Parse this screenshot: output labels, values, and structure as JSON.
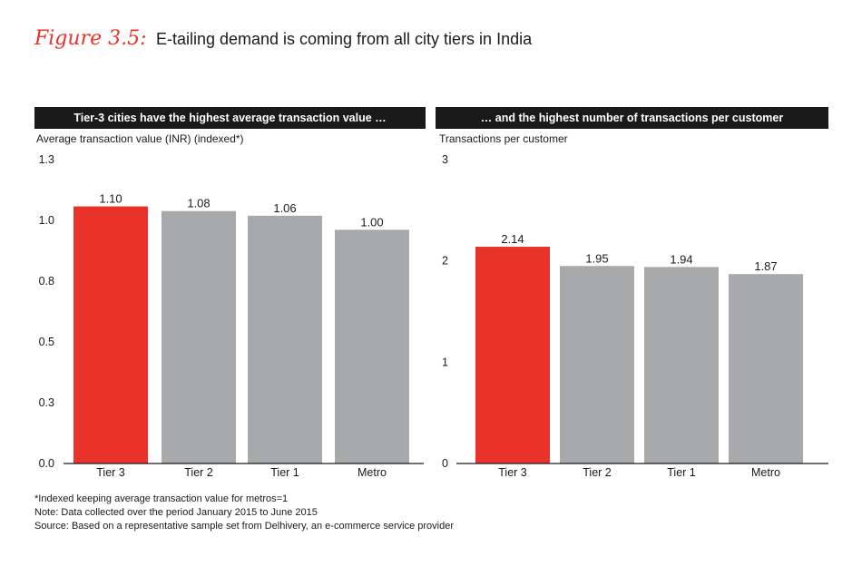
{
  "figure_label": "Figure 3.5:",
  "title": "E-tailing demand is coming from all city tiers in India",
  "footnotes": [
    "*Indexed keeping average transaction value for metros=1",
    "Note: Data collected over the period January 2015 to June 2015",
    "Source: Based on a representative sample set from Delhivery, an e-commerce service provider"
  ],
  "colors": {
    "highlight": "#e8322a",
    "bar": "#a8a9ab",
    "header": "#1a1a1a"
  },
  "chart_data": [
    {
      "type": "bar",
      "header": "Tier-3 cities have the highest average transaction value …",
      "ylabel": "Average transaction value (INR) (indexed*)",
      "xlabel": "",
      "categories": [
        "Tier 3",
        "Tier 2",
        "Tier 1",
        "Metro"
      ],
      "values": [
        1.1,
        1.08,
        1.06,
        1.0
      ],
      "value_labels": [
        "1.10",
        "1.08",
        "1.06",
        "1.00"
      ],
      "highlight_index": 0,
      "ylim": [
        0,
        1.3
      ],
      "yticks": [
        0.0,
        0.26,
        0.52,
        0.78,
        1.04,
        1.3
      ],
      "ytick_labels": [
        "0.0",
        "0.3",
        "0.5",
        "0.8",
        "1.0",
        "1.3"
      ],
      "grid": false
    },
    {
      "type": "bar",
      "header": "… and the highest number of transactions per customer",
      "ylabel": "Transactions per customer",
      "xlabel": "",
      "categories": [
        "Tier 3",
        "Tier 2",
        "Tier 1",
        "Metro"
      ],
      "values": [
        2.14,
        1.95,
        1.94,
        1.87
      ],
      "value_labels": [
        "2.14",
        "1.95",
        "1.94",
        "1.87"
      ],
      "highlight_index": 0,
      "ylim": [
        0,
        3
      ],
      "yticks": [
        0,
        1,
        2,
        3
      ],
      "ytick_labels": [
        "0",
        "1",
        "2",
        "3"
      ],
      "grid": false
    }
  ]
}
